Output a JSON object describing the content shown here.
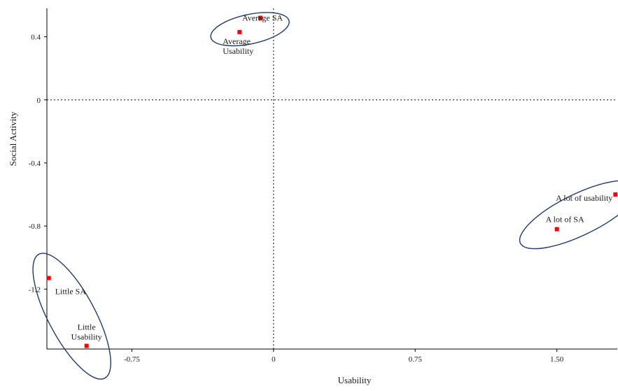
{
  "chart_data": {
    "type": "scatter",
    "title": "",
    "xlabel": "Usability",
    "ylabel": "Social Activity",
    "xlim": [
      -1.2,
      1.82
    ],
    "ylim": [
      -1.58,
      0.58
    ],
    "x_ticks": [
      -0.75,
      0,
      0.75,
      1.5
    ],
    "x_tick_labels": [
      "-0.75",
      "0",
      "0.75",
      "1.50"
    ],
    "y_ticks": [
      0.4,
      0,
      -0.4,
      -0.8,
      -1.2
    ],
    "y_tick_labels": [
      "0.4",
      "0",
      "-0.4",
      "-0.8",
      "-1.2"
    ],
    "reference_lines": {
      "x": 0,
      "y": 0,
      "style": "dotted"
    },
    "grid": false,
    "marker_color": "#ff0000",
    "ellipse_color": "#1f3a6b",
    "points": [
      {
        "label": "Average SA",
        "x": -0.07,
        "y": 0.52
      },
      {
        "label": "Average\nUsability",
        "x": -0.18,
        "y": 0.43
      },
      {
        "label": "A lot of usability",
        "x": 1.81,
        "y": -0.6
      },
      {
        "label": "A lot of SA",
        "x": 1.5,
        "y": -0.82
      },
      {
        "label": "Little SA",
        "x": -1.19,
        "y": -1.13
      },
      {
        "label": "Little\nUsability",
        "x": -0.99,
        "y": -1.56
      }
    ],
    "groups": [
      {
        "members": [
          "Average SA",
          "Average\nUsability"
        ]
      },
      {
        "members": [
          "A lot of usability",
          "A lot of SA"
        ]
      },
      {
        "members": [
          "Little SA",
          "Little\nUsability"
        ]
      }
    ]
  }
}
